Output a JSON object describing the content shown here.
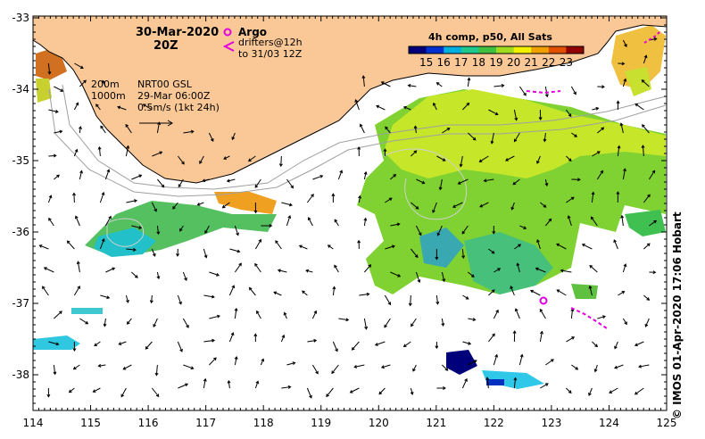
{
  "header": {
    "date": "30-Mar-2020",
    "time": "20Z"
  },
  "legend_argo": {
    "argo_label": "Argo",
    "drifters_line1": "drifters@12h",
    "drifters_line2": "to 31/03 12Z",
    "argo_color": "#e000e0"
  },
  "colorbar": {
    "title": "4h comp, p50, All Sats",
    "ticks": [
      "15",
      "16",
      "17",
      "18",
      "19",
      "20",
      "21",
      "22",
      "23"
    ],
    "colors": [
      "#00007a",
      "#0030d0",
      "#00b0e0",
      "#20c890",
      "#40c040",
      "#a0dc20",
      "#f0f000",
      "#f0a000",
      "#e05000",
      "#900000"
    ]
  },
  "contours": {
    "line1": "200m",
    "line2": "1000m"
  },
  "model": {
    "name": "NRT00 GSL",
    "date": "29-Mar 06:00Z",
    "scale": "0.5m/s (1kt 24h)"
  },
  "axes": {
    "x_ticks": [
      "114",
      "115",
      "116",
      "117",
      "118",
      "119",
      "120",
      "121",
      "122",
      "123",
      "124",
      "125"
    ],
    "y_ticks": [
      "-33",
      "-34",
      "-35",
      "-36",
      "-37",
      "-38"
    ]
  },
  "credit": "© IMOS 01-Apr-2020 17:06 Hobart",
  "colors": {
    "land": "#fac896",
    "frame": "#000000"
  }
}
